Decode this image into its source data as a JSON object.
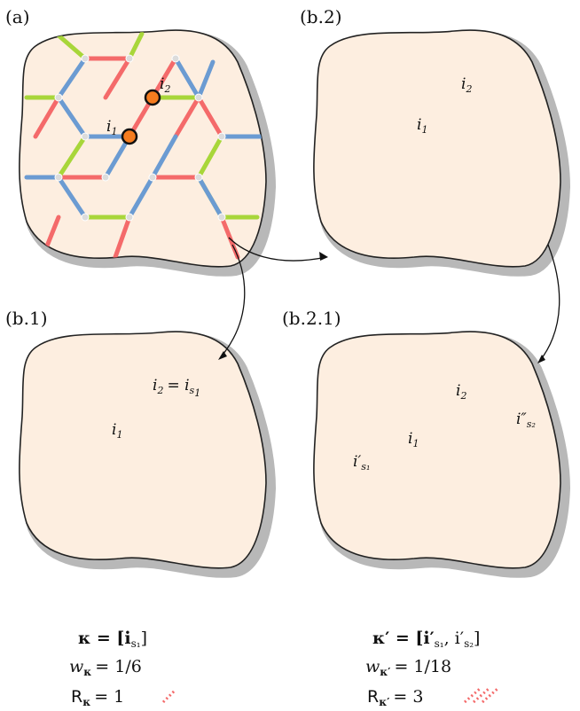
{
  "panels": [
    {
      "id": "a",
      "label": "(a)"
    },
    {
      "id": "b2",
      "label": "(b.2)"
    },
    {
      "id": "b1",
      "label": "(b.1)"
    },
    {
      "id": "b21",
      "label": "(b.2.1)"
    }
  ],
  "site_labels": {
    "i1": "i",
    "i1_sub": "1",
    "i2": "i",
    "i2_sub": "2",
    "i2_eq_lhs": "i",
    "i2_eq_lhs_sub": "2",
    "i2_eq_rhs": "= i",
    "i2_eq_rhs_sub": "s",
    "i2_eq_rhs_subsub": "1",
    "is1_prime": "i′",
    "is1_prime_sub": "s₁",
    "is2_dprime": "i″",
    "is2_dprime_sub": "s₂"
  },
  "equations": {
    "left": {
      "kappa": "κ = [i",
      "kappa_sub": "s₁",
      "kappa_end": "]",
      "weight": "w",
      "weight_sub": "κ",
      "weight_val": "= 1/6",
      "rank": "R",
      "rank_sub": "κ",
      "rank_val": "= 1"
    },
    "right": {
      "kappa": "κ′ = [i′",
      "kappa_sub1": "s₁",
      "kappa_mid": ", i′",
      "kappa_sub2": "s₂",
      "kappa_end": "]",
      "weight": "w",
      "weight_sub": "κ′",
      "weight_val": "= 1/18",
      "rank": "R",
      "rank_sub": "κ′",
      "rank_val": "= 3"
    }
  },
  "colors": {
    "x_bond": "#f46a6a",
    "y_bond": "#a8d63a",
    "z_bond": "#6b9bd2",
    "blob_fill": "#fdeee0",
    "blob_shadow": "#b8b8b8",
    "site_orange": "#f57c1f",
    "site_yellow": "#f4f026",
    "vertex": "#dcdcdc"
  }
}
